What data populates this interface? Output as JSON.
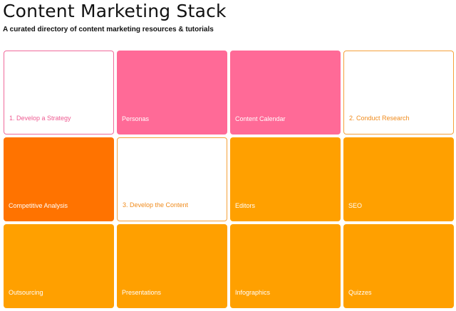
{
  "header": {
    "title": "Content Marketing Stack",
    "subtitle": "A curated directory of content marketing resources & tutorials"
  },
  "tiles": [
    {
      "label": "1. Develop a Strategy",
      "variant": "outline-pink"
    },
    {
      "label": "Personas",
      "variant": "fill-pink"
    },
    {
      "label": "Content Calendar",
      "variant": "fill-pink"
    },
    {
      "label": "2. Conduct Research",
      "variant": "outline-orange"
    },
    {
      "label": "Competitive Analysis",
      "variant": "fill-deep"
    },
    {
      "label": "3. Develop the Content",
      "variant": "outline-orange"
    },
    {
      "label": "Editors",
      "variant": "fill-orange"
    },
    {
      "label": "SEO",
      "variant": "fill-orange"
    },
    {
      "label": "Outsourcing",
      "variant": "fill-orange"
    },
    {
      "label": "Presentations",
      "variant": "fill-orange"
    },
    {
      "label": "Infographics",
      "variant": "fill-orange"
    },
    {
      "label": "Quizzes",
      "variant": "fill-orange"
    }
  ],
  "colors": {
    "pink": "#ff6a97",
    "pink_outline": "#f06a9a",
    "deep_orange": "#ff7300",
    "orange": "#ffa000",
    "orange_outline": "#f5a13a"
  }
}
